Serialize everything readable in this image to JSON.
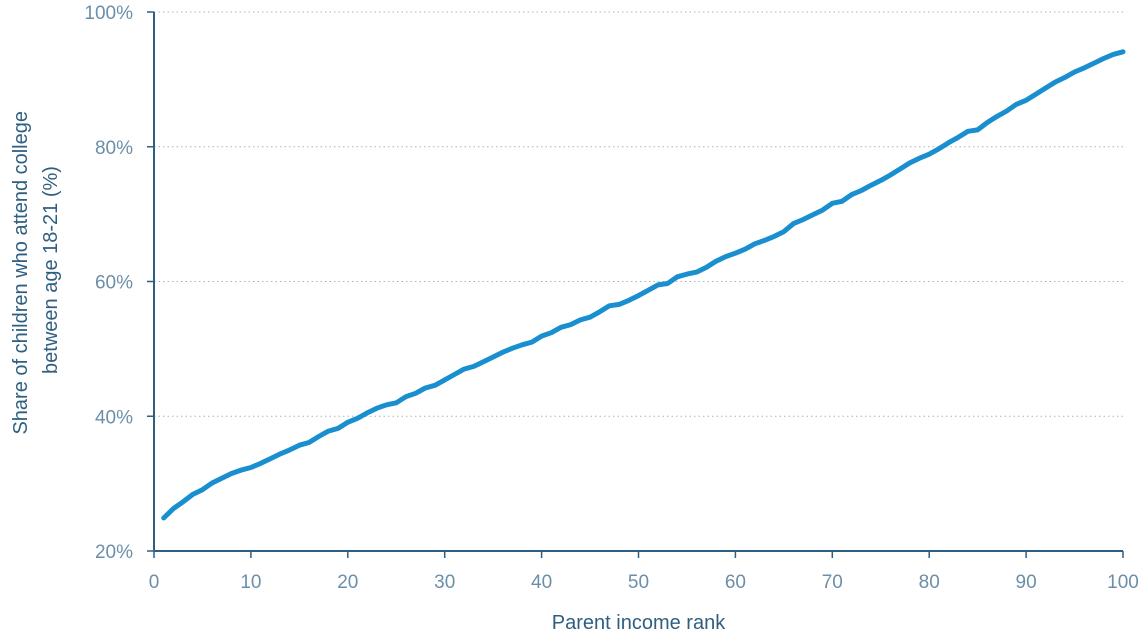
{
  "chart_data": {
    "type": "line",
    "xlabel": "Parent income rank",
    "ylabel_lines": [
      "Share of children who attend college",
      "between age 18-21 (%)"
    ],
    "xlim": [
      0,
      100
    ],
    "ylim": [
      20,
      100
    ],
    "xticks": [
      0,
      10,
      20,
      30,
      40,
      50,
      60,
      70,
      80,
      90,
      100
    ],
    "xtick_labels": [
      "0",
      "10",
      "20",
      "30",
      "40",
      "50",
      "60",
      "70",
      "80",
      "90",
      "100"
    ],
    "yticks": [
      20,
      40,
      60,
      80,
      100
    ],
    "ytick_labels": [
      "20%",
      "40%",
      "60%",
      "80%",
      "100%"
    ],
    "grid": "horizontal dotted",
    "series": [
      {
        "color": "#1a8fcf",
        "x": [
          1,
          2,
          3,
          4,
          5,
          6,
          7,
          8,
          9,
          10,
          11,
          12,
          13,
          14,
          15,
          16,
          17,
          18,
          19,
          20,
          21,
          22,
          23,
          24,
          25,
          26,
          27,
          28,
          29,
          30,
          31,
          32,
          33,
          34,
          35,
          36,
          37,
          38,
          39,
          40,
          41,
          42,
          43,
          44,
          45,
          46,
          47,
          48,
          49,
          50,
          51,
          52,
          53,
          54,
          55,
          56,
          57,
          58,
          59,
          60,
          61,
          62,
          63,
          64,
          65,
          66,
          67,
          68,
          69,
          70,
          71,
          72,
          73,
          74,
          75,
          76,
          77,
          78,
          79,
          80,
          81,
          82,
          83,
          84,
          85,
          86,
          87,
          88,
          89,
          90,
          91,
          92,
          93,
          94,
          95,
          96,
          97,
          98,
          99,
          100
        ],
        "y": [
          24.9,
          26.3,
          27.3,
          28.4,
          29.1,
          30.1,
          30.8,
          31.5,
          32.0,
          32.4,
          33.0,
          33.7,
          34.4,
          35.0,
          35.7,
          36.1,
          37.0,
          37.8,
          38.2,
          39.1,
          39.7,
          40.5,
          41.2,
          41.7,
          42.0,
          42.9,
          43.4,
          44.2,
          44.6,
          45.4,
          46.2,
          47.0,
          47.4,
          48.1,
          48.8,
          49.5,
          50.1,
          50.6,
          51.0,
          51.9,
          52.4,
          53.2,
          53.6,
          54.3,
          54.7,
          55.5,
          56.4,
          56.6,
          57.2,
          57.9,
          58.7,
          59.5,
          59.7,
          60.7,
          61.1,
          61.4,
          62.1,
          63.0,
          63.7,
          64.2,
          64.8,
          65.6,
          66.1,
          66.7,
          67.4,
          68.6,
          69.2,
          69.9,
          70.6,
          71.6,
          71.9,
          72.9,
          73.5,
          74.3,
          75.0,
          75.8,
          76.7,
          77.6,
          78.3,
          78.9,
          79.7,
          80.6,
          81.4,
          82.3,
          82.5,
          83.6,
          84.5,
          85.3,
          86.3,
          86.9,
          87.8,
          88.7,
          89.6,
          90.3,
          91.1,
          91.7,
          92.4,
          93.1,
          93.7,
          94.1
        ]
      }
    ]
  }
}
